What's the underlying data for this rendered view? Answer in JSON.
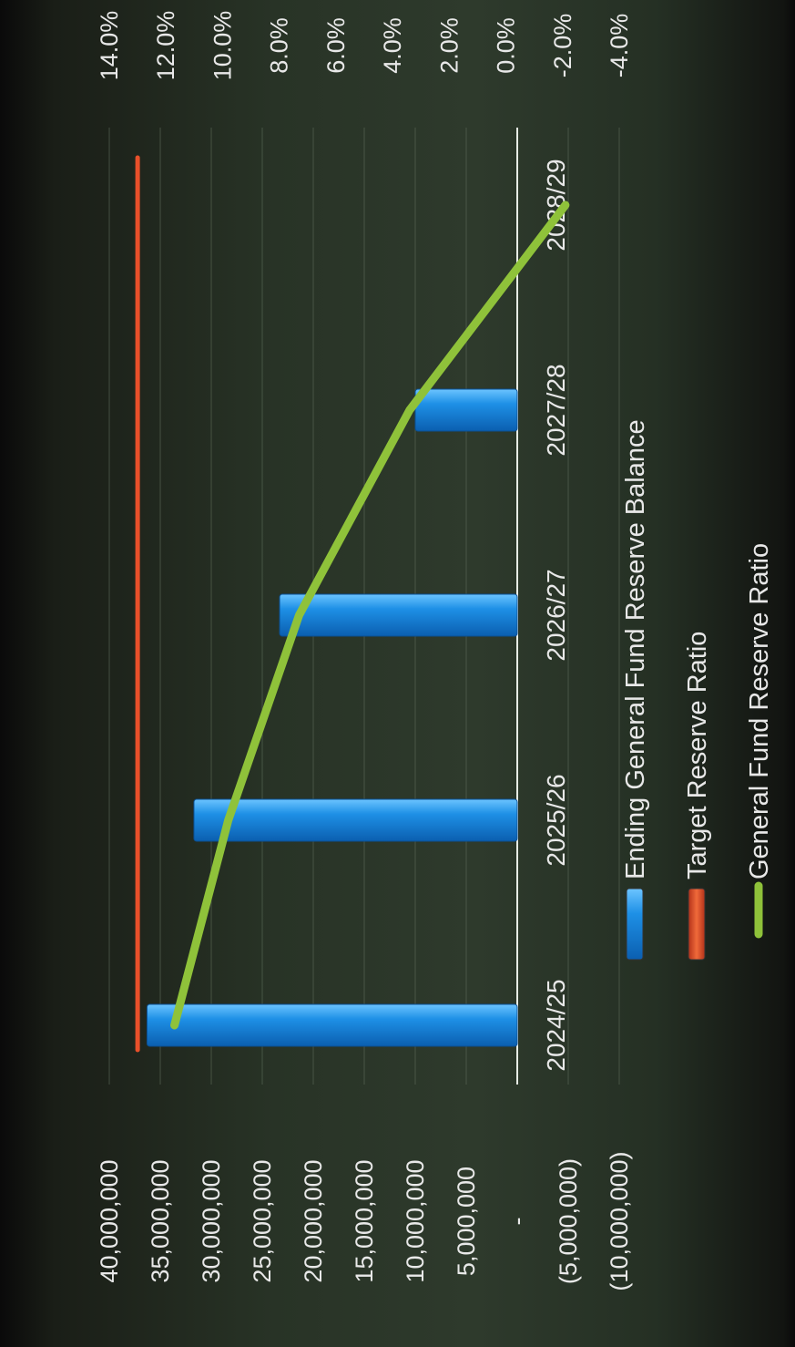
{
  "chart_data": {
    "type": "bar",
    "categories": [
      "2024/25",
      "2025/26",
      "2026/27",
      "2027/28",
      "2028/29"
    ],
    "series": [
      {
        "name": "Ending General Fund Reserve Balance",
        "type": "bar",
        "axis": "left",
        "color": "#1e90e6",
        "values": [
          36300000,
          31700000,
          23300000,
          10000000,
          0
        ]
      },
      {
        "name": "Target Reserve Ratio",
        "type": "line",
        "axis": "right",
        "color": "#e8502a",
        "values": [
          13.0,
          13.0,
          13.0,
          13.0,
          13.0
        ]
      },
      {
        "name": "General Fund Reserve Ratio",
        "type": "line",
        "axis": "right",
        "color": "#8fc23a",
        "values": [
          11.7,
          9.8,
          7.3,
          3.4,
          -2.1
        ]
      }
    ],
    "left_ticks": [
      "40,000,000",
      "35,000,000",
      "30,000,000",
      "25,000,000",
      "20,000,000",
      "15,000,000",
      "10,000,000",
      "5,000,000",
      "-",
      "(5,000,000)",
      "(10,000,000)"
    ],
    "right_ticks": [
      "14.0%",
      "12.0%",
      "10.0%",
      "8.0%",
      "6.0%",
      "4.0%",
      "2.0%",
      "0.0%",
      "-2.0%",
      "-4.0%"
    ],
    "left_ylim": [
      -10000000,
      40000000
    ],
    "right_ylim": [
      -4.0,
      14.0
    ],
    "grid": true,
    "orientation": "rotated 90° clockwise",
    "legend_position": "bottom"
  }
}
